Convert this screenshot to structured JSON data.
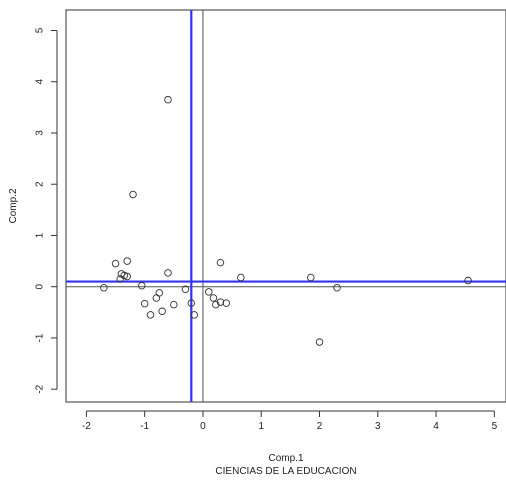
{
  "chart_data": {
    "type": "scatter",
    "xlabel": "Comp.1",
    "ylabel": "Comp.2",
    "subtitle": "CIENCIAS DE LA EDUCACION",
    "xlim": [
      -2.35,
      5.2
    ],
    "ylim": [
      -2.25,
      5.4
    ],
    "xticks": [
      -2,
      -1,
      0,
      1,
      2,
      3,
      4,
      5
    ],
    "yticks": [
      -2,
      -1,
      0,
      1,
      2,
      3,
      4,
      5
    ],
    "grid": false,
    "reference_lines": [
      {
        "orientation": "vertical",
        "value": 0,
        "color": "#555555"
      },
      {
        "orientation": "horizontal",
        "value": 0,
        "color": "#555555"
      },
      {
        "orientation": "vertical",
        "value": -0.2,
        "color": "#3333ee"
      },
      {
        "orientation": "horizontal",
        "value": 0.1,
        "color": "#3333ee"
      }
    ],
    "points": [
      {
        "x": -0.6,
        "y": 3.65
      },
      {
        "x": -1.2,
        "y": 1.8
      },
      {
        "x": -1.7,
        "y": -0.02
      },
      {
        "x": -1.5,
        "y": 0.45
      },
      {
        "x": -1.3,
        "y": 0.5
      },
      {
        "x": -1.4,
        "y": 0.25
      },
      {
        "x": -1.35,
        "y": 0.22
      },
      {
        "x": -1.3,
        "y": 0.2
      },
      {
        "x": -1.42,
        "y": 0.15
      },
      {
        "x": -1.05,
        "y": 0.02
      },
      {
        "x": -1.0,
        "y": -0.33
      },
      {
        "x": -0.9,
        "y": -0.55
      },
      {
        "x": -0.8,
        "y": -0.22
      },
      {
        "x": -0.75,
        "y": -0.12
      },
      {
        "x": -0.7,
        "y": -0.48
      },
      {
        "x": -0.6,
        "y": 0.27
      },
      {
        "x": -0.5,
        "y": -0.35
      },
      {
        "x": -0.3,
        "y": -0.05
      },
      {
        "x": -0.2,
        "y": -0.32
      },
      {
        "x": -0.15,
        "y": -0.55
      },
      {
        "x": 0.1,
        "y": -0.1
      },
      {
        "x": 0.18,
        "y": -0.22
      },
      {
        "x": 0.22,
        "y": -0.35
      },
      {
        "x": 0.3,
        "y": -0.3
      },
      {
        "x": 0.4,
        "y": -0.32
      },
      {
        "x": 0.3,
        "y": 0.47
      },
      {
        "x": 0.65,
        "y": 0.18
      },
      {
        "x": 1.85,
        "y": 0.18
      },
      {
        "x": 2.3,
        "y": -0.02
      },
      {
        "x": 2.0,
        "y": -1.08
      },
      {
        "x": 4.55,
        "y": 0.12
      }
    ]
  }
}
